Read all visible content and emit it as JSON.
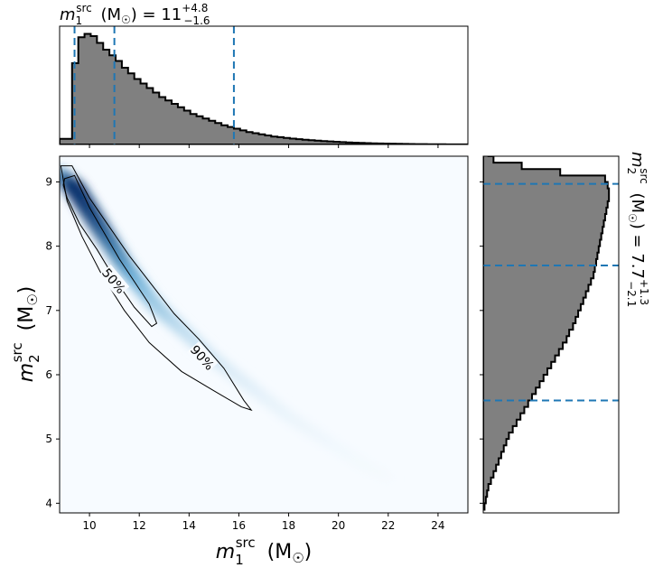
{
  "chart_data": {
    "type": "corner-plot",
    "top_title": {
      "prefix": "m₁ˢʳᶜ (M☉) = ",
      "value": "11",
      "plus": "+4.8",
      "minus": "−1.6"
    },
    "right_title": {
      "prefix": "m₂ˢʳᶜ (M☉) = ",
      "value": "7.7",
      "plus": "+1.3",
      "minus": "−2.1"
    },
    "xlabel": "m₁ˢʳᶜ (M☉)",
    "ylabel": "m₂ˢʳᶜ (M☉)",
    "xlim": [
      8.8,
      25.2
    ],
    "ylim": [
      3.85,
      9.4
    ],
    "xticks": [
      10,
      12,
      14,
      16,
      18,
      20,
      22,
      24
    ],
    "yticks": [
      4,
      5,
      6,
      7,
      8,
      9
    ],
    "contour_labels": [
      "50%",
      "90%"
    ],
    "m1_quantiles": [
      9.4,
      11.0,
      15.8
    ],
    "m2_quantiles": [
      5.6,
      7.7,
      8.97
    ],
    "m1_hist": {
      "bin_edges_start": 8.8,
      "bin_width": 0.25,
      "density": [
        0.05,
        0.05,
        0.72,
        0.95,
        0.98,
        0.96,
        0.9,
        0.84,
        0.79,
        0.74,
        0.68,
        0.63,
        0.58,
        0.54,
        0.5,
        0.46,
        0.42,
        0.39,
        0.36,
        0.33,
        0.3,
        0.27,
        0.25,
        0.23,
        0.21,
        0.19,
        0.17,
        0.155,
        0.14,
        0.125,
        0.11,
        0.1,
        0.09,
        0.08,
        0.07,
        0.065,
        0.058,
        0.052,
        0.047,
        0.042,
        0.038,
        0.034,
        0.03,
        0.027,
        0.024,
        0.021,
        0.018,
        0.016,
        0.014,
        0.012,
        0.01,
        0.009,
        0.008,
        0.007,
        0.006,
        0.005,
        0.004,
        0.0035,
        0.003,
        0.0025,
        0.002,
        0.0018,
        0.0015,
        0.0013,
        0.001,
        0.0008
      ]
    },
    "m2_hist": {
      "bin_edges_start": 3.9,
      "bin_width": 0.1,
      "density": [
        0.01,
        0.02,
        0.03,
        0.04,
        0.06,
        0.08,
        0.1,
        0.12,
        0.14,
        0.16,
        0.18,
        0.2,
        0.23,
        0.26,
        0.29,
        0.32,
        0.35,
        0.38,
        0.41,
        0.44,
        0.47,
        0.5,
        0.53,
        0.56,
        0.59,
        0.62,
        0.65,
        0.67,
        0.7,
        0.72,
        0.74,
        0.76,
        0.78,
        0.8,
        0.82,
        0.84,
        0.86,
        0.87,
        0.88,
        0.89,
        0.9,
        0.91,
        0.92,
        0.93,
        0.94,
        0.95,
        0.96,
        0.97,
        0.98,
        0.98,
        0.97,
        0.95,
        0.6,
        0.3,
        0.08,
        0.04
      ]
    },
    "joint_ridge": {
      "m1": [
        9.0,
        9.5,
        10.0,
        10.5,
        11.0,
        11.5,
        12.0,
        12.5,
        13.0,
        14.0,
        15.0,
        16.0,
        17.0,
        18.0,
        19.0,
        20.0,
        21.0,
        22.0
      ],
      "m2": [
        9.05,
        8.85,
        8.55,
        8.25,
        7.95,
        7.65,
        7.4,
        7.15,
        6.95,
        6.6,
        6.25,
        5.95,
        5.65,
        5.35,
        5.1,
        4.85,
        4.6,
        4.4
      ],
      "weight": [
        0.55,
        1.0,
        0.95,
        0.85,
        0.72,
        0.6,
        0.48,
        0.38,
        0.3,
        0.2,
        0.14,
        0.1,
        0.07,
        0.05,
        0.035,
        0.025,
        0.015,
        0.01
      ]
    },
    "contour_50": {
      "m1": [
        9.0,
        9.4,
        10.0,
        10.6,
        11.2,
        11.8,
        12.4,
        12.7,
        12.5,
        11.8,
        11.0,
        10.3,
        9.6,
        9.1,
        8.95,
        9.0
      ],
      "m2": [
        9.05,
        9.1,
        8.6,
        8.2,
        7.8,
        7.45,
        7.1,
        6.8,
        6.75,
        7.05,
        7.5,
        7.95,
        8.35,
        8.75,
        8.95,
        9.05
      ]
    },
    "contour_90": {
      "m1": [
        8.85,
        9.3,
        10.0,
        10.8,
        11.6,
        12.5,
        13.4,
        14.4,
        15.4,
        16.2,
        16.5,
        16.1,
        15.0,
        13.7,
        12.4,
        11.4,
        10.5,
        9.7,
        9.1,
        8.85
      ],
      "m2": [
        9.25,
        9.25,
        8.75,
        8.3,
        7.85,
        7.4,
        6.95,
        6.55,
        6.1,
        5.6,
        5.45,
        5.5,
        5.75,
        6.05,
        6.5,
        7.0,
        7.55,
        8.15,
        8.7,
        9.25
      ]
    },
    "colors": {
      "hist_fill": "#808080",
      "quantile_line": "#1f77b4",
      "cmap_dark": "#08306b",
      "cmap_light": "#f7fbff"
    }
  }
}
